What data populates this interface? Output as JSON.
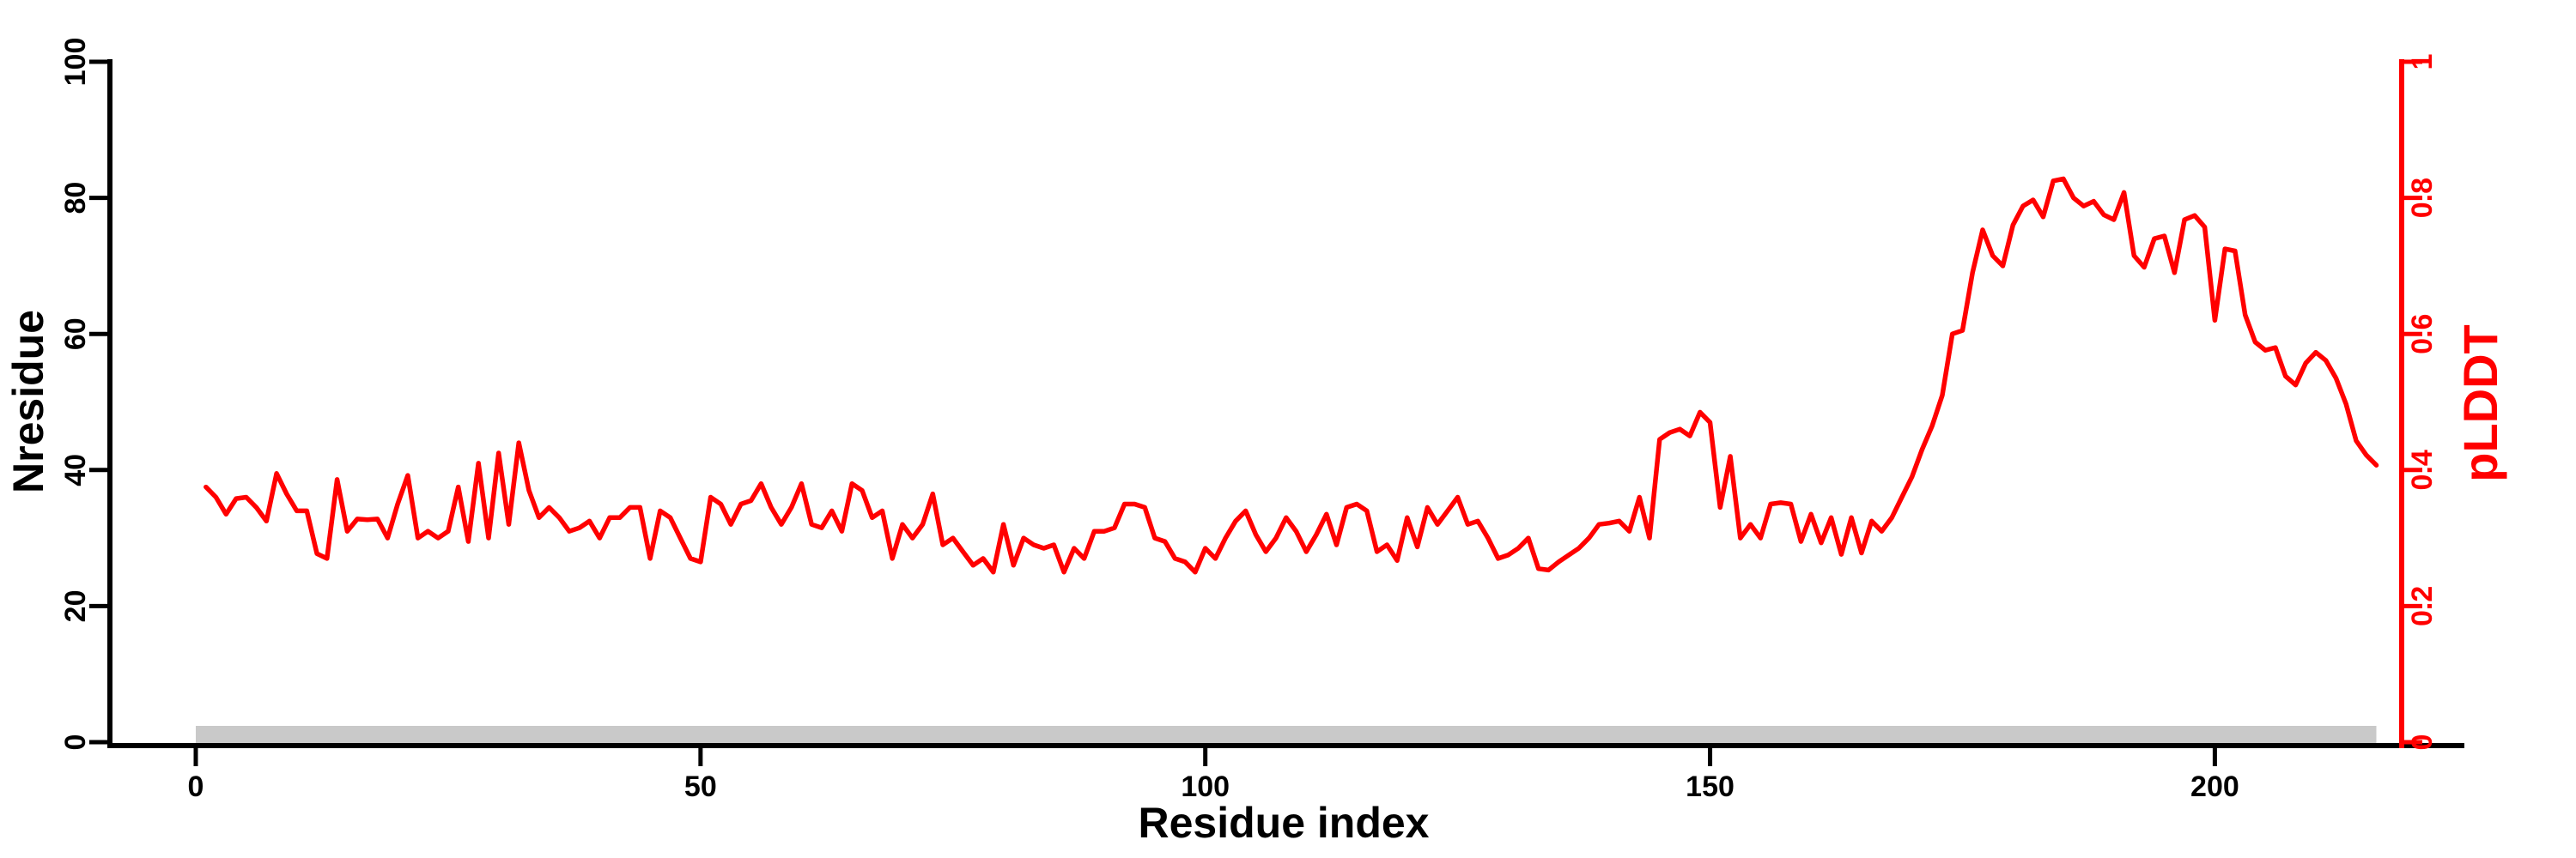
{
  "chart_data": {
    "type": "line",
    "title": "",
    "xlabel": "Residue index",
    "ylabel_left": "Nresidue",
    "ylabel_right": "pLDDT",
    "xlim": [
      0,
      217
    ],
    "ylim_left": [
      0,
      100
    ],
    "ylim_right": [
      0,
      1
    ],
    "grid": "off",
    "legend": "none",
    "background_color": "#ffffff",
    "axis_color": "#000000",
    "line_color": "#ff0000",
    "x_ticks": {
      "values": [
        0,
        50,
        100,
        150,
        200
      ],
      "labels": [
        "0",
        "50",
        "100",
        "150",
        "200"
      ]
    },
    "left_ticks": {
      "values": [
        0,
        20,
        40,
        60,
        80,
        100
      ],
      "labels": [
        "0",
        "20",
        "40",
        "60",
        "80",
        "100"
      ]
    },
    "right_ticks": {
      "values": [
        0,
        0.2,
        0.4,
        0.6,
        0.8,
        1
      ],
      "labels": [
        "0",
        "0.2",
        "0.4",
        "0.6",
        "0.8",
        "1"
      ]
    },
    "annotation_bar": {
      "from_residue": 0,
      "to_residue": 216,
      "color": "#c9c9c9"
    },
    "series": [
      {
        "name": "pLDDT",
        "axis": "right",
        "x_start": 1,
        "x_step": 1,
        "values": [
          0.375,
          0.36,
          0.335,
          0.358,
          0.36,
          0.345,
          0.325,
          0.395,
          0.365,
          0.34,
          0.34,
          0.277,
          0.27,
          0.386,
          0.31,
          0.328,
          0.327,
          0.328,
          0.3,
          0.35,
          0.392,
          0.3,
          0.31,
          0.3,
          0.31,
          0.375,
          0.295,
          0.41,
          0.3,
          0.425,
          0.32,
          0.44,
          0.37,
          0.33,
          0.345,
          0.33,
          0.31,
          0.315,
          0.325,
          0.3,
          0.33,
          0.33,
          0.345,
          0.345,
          0.27,
          0.34,
          0.33,
          0.3,
          0.27,
          0.265,
          0.36,
          0.35,
          0.32,
          0.35,
          0.355,
          0.38,
          0.345,
          0.32,
          0.345,
          0.38,
          0.32,
          0.315,
          0.34,
          0.31,
          0.38,
          0.37,
          0.33,
          0.34,
          0.27,
          0.32,
          0.3,
          0.32,
          0.365,
          0.29,
          0.3,
          0.28,
          0.26,
          0.27,
          0.25,
          0.32,
          0.26,
          0.3,
          0.29,
          0.285,
          0.29,
          0.25,
          0.285,
          0.27,
          0.31,
          0.31,
          0.315,
          0.35,
          0.35,
          0.345,
          0.3,
          0.295,
          0.27,
          0.265,
          0.25,
          0.285,
          0.27,
          0.3,
          0.325,
          0.34,
          0.305,
          0.28,
          0.3,
          0.33,
          0.31,
          0.28,
          0.305,
          0.335,
          0.29,
          0.345,
          0.35,
          0.34,
          0.28,
          0.29,
          0.267,
          0.33,
          0.287,
          0.345,
          0.32,
          0.34,
          0.36,
          0.32,
          0.325,
          0.3,
          0.27,
          0.275,
          0.285,
          0.3,
          0.255,
          0.253,
          0.265,
          0.275,
          0.285,
          0.3,
          0.32,
          0.322,
          0.325,
          0.31,
          0.36,
          0.3,
          0.445,
          0.455,
          0.46,
          0.45,
          0.485,
          0.47,
          0.345,
          0.42,
          0.3,
          0.32,
          0.3,
          0.35,
          0.352,
          0.35,
          0.295,
          0.335,
          0.293,
          0.33,
          0.276,
          0.33,
          0.278,
          0.325,
          0.31,
          0.33,
          0.36,
          0.39,
          0.43,
          0.465,
          0.51,
          0.6,
          0.605,
          0.69,
          0.753,
          0.715,
          0.7,
          0.76,
          0.788,
          0.797,
          0.772,
          0.825,
          0.828,
          0.8,
          0.788,
          0.795,
          0.775,
          0.768,
          0.808,
          0.715,
          0.698,
          0.74,
          0.744,
          0.69,
          0.768,
          0.774,
          0.757,
          0.62,
          0.725,
          0.722,
          0.628,
          0.588,
          0.576,
          0.58,
          0.538,
          0.525,
          0.557,
          0.573,
          0.561,
          0.535,
          0.497,
          0.443,
          0.422,
          0.407
        ]
      }
    ]
  }
}
